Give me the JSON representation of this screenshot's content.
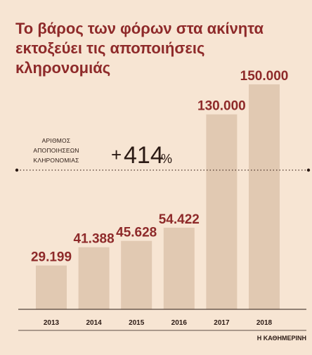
{
  "title_lines": [
    "Το βάρος των φόρων στα ακίνητα",
    "εκτοξεύει τις αποποιήσεις",
    "κληρονομιάς"
  ],
  "annotation": {
    "label_lines": [
      "ΑΡΙΘΜΟΣ",
      "ΑΠΟΠΟΙΗΣΕΩΝ",
      "ΚΛΗΡΟΝΟΜΙΑΣ"
    ],
    "change_sign": "+",
    "change_value": "414",
    "change_unit": "%"
  },
  "credit": "Η ΚΑΘΗΜΕΡΙΝΗ",
  "colors": {
    "background": "#f7e5d3",
    "bar": "#e1c9b2",
    "accent": "#8e2a2a",
    "text": "#2b1a14"
  },
  "chart_data": {
    "type": "bar",
    "categories": [
      "2013",
      "2014",
      "2015",
      "2016",
      "2017",
      "2018"
    ],
    "values": [
      29199,
      41388,
      45628,
      54422,
      130000,
      150000
    ],
    "value_labels": [
      "29.199",
      "41.388",
      "45.628",
      "54.422",
      "130.000",
      "150.000"
    ],
    "title": "Το βάρος των φόρων στα ακίνητα εκτοξεύει τις αποποιήσεις κληρονομιάς",
    "xlabel": "",
    "ylabel": "",
    "ylim": [
      0,
      150000
    ],
    "grid": false,
    "legend": "none"
  }
}
